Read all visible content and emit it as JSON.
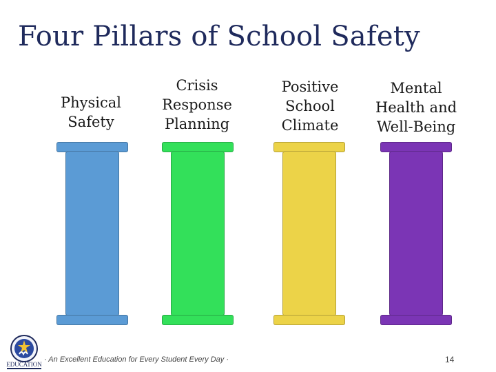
{
  "slide": {
    "title": "Four Pillars of School Safety",
    "pillars": [
      {
        "label": "Physical\nSafety",
        "color": "#5b9bd5"
      },
      {
        "label": "Crisis\nResponse\nPlanning",
        "color": "#33e05a"
      },
      {
        "label": "Positive\nSchool\nClimate",
        "color": "#ecd348"
      },
      {
        "label": "Mental\nHealth and\nWell-Being",
        "color": "#7b35b5"
      }
    ],
    "footer": {
      "tagline": "· An Excellent Education for Every Student Every Day ·",
      "page_number": "14",
      "logo_text": "EDUCATION"
    }
  }
}
